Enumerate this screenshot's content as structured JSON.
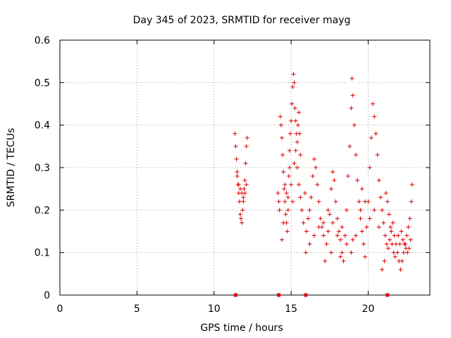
{
  "chart_data": {
    "type": "scatter",
    "title": "Day 345 of 2023, SRMTID for receiver mayg",
    "xlabel": "GPS time / hours",
    "ylabel": "SRMTID / TECUs",
    "xlim": [
      0,
      24
    ],
    "ylim": [
      0,
      0.6
    ],
    "xticks": [
      "0",
      "5",
      "10",
      "15",
      "20"
    ],
    "yticks": [
      "0",
      "0.1",
      "0.2",
      "0.3",
      "0.4",
      "0.5",
      "0.6"
    ],
    "grid": true,
    "marker": "plus",
    "color": "#dd0000",
    "points": [
      [
        11.35,
        0.38
      ],
      [
        11.4,
        0.35
      ],
      [
        11.45,
        0.32
      ],
      [
        11.5,
        0.28
      ],
      [
        11.55,
        0.26
      ],
      [
        11.6,
        0.24
      ],
      [
        11.65,
        0.22
      ],
      [
        11.7,
        0.19
      ],
      [
        11.75,
        0.18
      ],
      [
        11.8,
        0.17
      ],
      [
        11.85,
        0.2
      ],
      [
        11.9,
        0.23
      ],
      [
        11.95,
        0.25
      ],
      [
        12.0,
        0.27
      ],
      [
        12.05,
        0.31
      ],
      [
        12.1,
        0.35
      ],
      [
        12.15,
        0.37
      ],
      [
        11.5,
        0.29
      ],
      [
        11.6,
        0.26
      ],
      [
        11.7,
        0.25
      ],
      [
        11.8,
        0.24
      ],
      [
        11.9,
        0.22
      ],
      [
        12.0,
        0.24
      ],
      [
        12.1,
        0.26
      ],
      [
        14.15,
        0.24
      ],
      [
        14.2,
        0.22
      ],
      [
        14.25,
        0.2
      ],
      [
        14.3,
        0.42
      ],
      [
        14.35,
        0.4
      ],
      [
        14.4,
        0.37
      ],
      [
        14.45,
        0.33
      ],
      [
        14.5,
        0.29
      ],
      [
        14.55,
        0.25
      ],
      [
        14.6,
        0.22
      ],
      [
        14.65,
        0.19
      ],
      [
        14.7,
        0.17
      ],
      [
        14.75,
        0.15
      ],
      [
        14.8,
        0.2
      ],
      [
        14.85,
        0.28
      ],
      [
        14.9,
        0.34
      ],
      [
        14.95,
        0.38
      ],
      [
        15.0,
        0.41
      ],
      [
        15.05,
        0.45
      ],
      [
        15.1,
        0.49
      ],
      [
        15.15,
        0.52
      ],
      [
        15.2,
        0.5
      ],
      [
        15.25,
        0.44
      ],
      [
        15.3,
        0.41
      ],
      [
        15.35,
        0.38
      ],
      [
        15.4,
        0.36
      ],
      [
        15.45,
        0.4
      ],
      [
        15.5,
        0.43
      ],
      [
        15.55,
        0.38
      ],
      [
        15.6,
        0.33
      ],
      [
        14.4,
        0.13
      ],
      [
        14.5,
        0.17
      ],
      [
        14.6,
        0.26
      ],
      [
        14.7,
        0.24
      ],
      [
        14.8,
        0.23
      ],
      [
        14.9,
        0.3
      ],
      [
        15.0,
        0.26
      ],
      [
        15.1,
        0.22
      ],
      [
        15.2,
        0.31
      ],
      [
        15.3,
        0.34
      ],
      [
        15.4,
        0.3
      ],
      [
        15.5,
        0.26
      ],
      [
        15.6,
        0.23
      ],
      [
        15.7,
        0.2
      ],
      [
        15.8,
        0.17
      ],
      [
        15.9,
        0.24
      ],
      [
        15.95,
        0.1
      ],
      [
        16.0,
        0.15
      ],
      [
        16.1,
        0.18
      ],
      [
        16.2,
        0.2
      ],
      [
        16.3,
        0.23
      ],
      [
        16.4,
        0.28
      ],
      [
        16.5,
        0.32
      ],
      [
        16.6,
        0.3
      ],
      [
        16.7,
        0.26
      ],
      [
        16.8,
        0.22
      ],
      [
        16.9,
        0.18
      ],
      [
        17.0,
        0.16
      ],
      [
        17.1,
        0.14
      ],
      [
        17.2,
        0.08
      ],
      [
        17.3,
        0.12
      ],
      [
        17.4,
        0.15
      ],
      [
        17.5,
        0.19
      ],
      [
        17.6,
        0.25
      ],
      [
        17.7,
        0.29
      ],
      [
        17.8,
        0.27
      ],
      [
        17.9,
        0.22
      ],
      [
        18.0,
        0.18
      ],
      [
        18.1,
        0.15
      ],
      [
        18.2,
        0.13
      ],
      [
        18.3,
        0.1
      ],
      [
        18.4,
        0.08
      ],
      [
        18.5,
        0.14
      ],
      [
        18.6,
        0.2
      ],
      [
        18.7,
        0.28
      ],
      [
        18.8,
        0.35
      ],
      [
        18.9,
        0.44
      ],
      [
        18.95,
        0.51
      ],
      [
        19.0,
        0.47
      ],
      [
        19.1,
        0.4
      ],
      [
        19.2,
        0.33
      ],
      [
        19.3,
        0.27
      ],
      [
        19.4,
        0.22
      ],
      [
        19.5,
        0.18
      ],
      [
        19.6,
        0.15
      ],
      [
        19.7,
        0.12
      ],
      [
        19.8,
        0.09
      ],
      [
        19.9,
        0.16
      ],
      [
        20.0,
        0.22
      ],
      [
        20.1,
        0.3
      ],
      [
        20.2,
        0.37
      ],
      [
        20.3,
        0.45
      ],
      [
        20.4,
        0.42
      ],
      [
        20.5,
        0.38
      ],
      [
        20.6,
        0.33
      ],
      [
        20.7,
        0.27
      ],
      [
        20.8,
        0.23
      ],
      [
        16.2,
        0.12
      ],
      [
        16.5,
        0.14
      ],
      [
        16.8,
        0.16
      ],
      [
        17.1,
        0.17
      ],
      [
        17.4,
        0.2
      ],
      [
        17.7,
        0.17
      ],
      [
        18.0,
        0.14
      ],
      [
        18.3,
        0.16
      ],
      [
        18.6,
        0.12
      ],
      [
        18.9,
        0.1
      ],
      [
        19.2,
        0.14
      ],
      [
        19.5,
        0.2
      ],
      [
        19.8,
        0.22
      ],
      [
        20.1,
        0.18
      ],
      [
        20.4,
        0.2
      ],
      [
        20.7,
        0.16
      ],
      [
        17.6,
        0.1
      ],
      [
        18.2,
        0.09
      ],
      [
        19.0,
        0.13
      ],
      [
        19.6,
        0.25
      ],
      [
        20.9,
        0.2
      ],
      [
        21.0,
        0.17
      ],
      [
        21.1,
        0.14
      ],
      [
        21.2,
        0.12
      ],
      [
        21.3,
        0.11
      ],
      [
        21.4,
        0.13
      ],
      [
        21.5,
        0.15
      ],
      [
        21.6,
        0.17
      ],
      [
        21.7,
        0.14
      ],
      [
        21.8,
        0.12
      ],
      [
        21.9,
        0.1
      ],
      [
        22.0,
        0.08
      ],
      [
        22.1,
        0.06
      ],
      [
        22.2,
        0.08
      ],
      [
        22.3,
        0.1
      ],
      [
        22.4,
        0.12
      ],
      [
        22.5,
        0.14
      ],
      [
        22.6,
        0.16
      ],
      [
        22.7,
        0.18
      ],
      [
        22.8,
        0.22
      ],
      [
        22.85,
        0.26
      ],
      [
        22.75,
        0.13
      ],
      [
        22.65,
        0.11
      ],
      [
        22.55,
        0.1
      ],
      [
        22.45,
        0.11
      ],
      [
        22.35,
        0.12
      ],
      [
        22.25,
        0.13
      ],
      [
        22.15,
        0.15
      ],
      [
        22.05,
        0.12
      ],
      [
        21.95,
        0.14
      ],
      [
        20.9,
        0.06
      ],
      [
        21.05,
        0.08
      ],
      [
        21.15,
        0.24
      ],
      [
        21.25,
        0.22
      ],
      [
        21.35,
        0.19
      ],
      [
        21.45,
        0.16
      ],
      [
        21.55,
        0.12
      ],
      [
        21.65,
        0.1
      ],
      [
        21.75,
        0.09
      ]
    ],
    "zero_points": [
      11.4,
      14.2,
      15.95,
      21.25
    ]
  }
}
